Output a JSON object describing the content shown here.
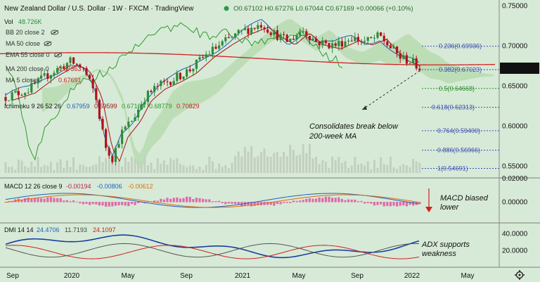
{
  "header": {
    "symbol": "New Zealand Dollar / U.S. Dollar · 1W · FXCM · TradingView",
    "ohlc": "O0.67102 H0.67276 L0.67044 C0.67169 +0.00066 (+0.10%)",
    "vol_label": "Vol",
    "vol_value": "48.726K"
  },
  "indicators": [
    {
      "label": "BB 20 close 2",
      "value": "",
      "color": "#5a86b0"
    },
    {
      "label": "MA 50 close",
      "value": "",
      "color": "#5a86b0"
    },
    {
      "label": "EMA 55 close 0",
      "value": "",
      "color": "#5a86b0"
    },
    {
      "label": "MA 200 close 0",
      "value": "0.67363",
      "color": "#d21f1f"
    },
    {
      "label": "MA 5 close 0",
      "value": "0.67691",
      "color": "#d21f1f"
    }
  ],
  "ichimoku": {
    "label": "Ichimoku 9 26 52 26",
    "values": [
      {
        "v": "0.67959",
        "color": "#1f5fbf"
      },
      {
        "v": "0.69599",
        "color": "#a3121b"
      },
      {
        "v": "0.67169",
        "color": "#2a9a2a"
      },
      {
        "v": "0.68779",
        "color": "#2a9a2a"
      },
      {
        "v": "0.70829",
        "color": "#d21f1f"
      }
    ]
  },
  "price_axis": {
    "ticks": [
      "0.75000",
      "0.70000",
      "0.65000",
      "0.60000",
      "0.55000"
    ],
    "current_price": "0.67169"
  },
  "fib_levels": [
    {
      "label": "0.236(0.69936)",
      "color": "#3c4fb0"
    },
    {
      "label": "0.382(0.67023)",
      "color": "#3c4fb0"
    },
    {
      "label": "0.5(0.64668)",
      "color": "#2a8a2a"
    },
    {
      "label": "0.618(0.62313)",
      "color": "#3c4fb0"
    },
    {
      "label": "0.764(0.59400)",
      "color": "#3c4fb0"
    },
    {
      "label": "0.886(0.56966)",
      "color": "#3c4fb0"
    },
    {
      "label": "1(0.54691)",
      "color": "#3c4fb0"
    }
  ],
  "annotations": {
    "price": [
      "Consolidates break below",
      "200-week MA"
    ],
    "macd": [
      "MACD biased",
      "lower"
    ],
    "adx": [
      "ADX supports",
      "weakness"
    ]
  },
  "macd": {
    "label": "MACD 12 26 close 9",
    "values": [
      {
        "v": "-0.00194",
        "color": "#c2185b"
      },
      {
        "v": "-0.00806",
        "color": "#1f5fbf"
      },
      {
        "v": "-0.00612",
        "color": "#e06a10"
      }
    ],
    "axis_ticks": [
      "0.02000",
      "0.00000"
    ]
  },
  "dmi": {
    "label": "DMI 14 14",
    "values": [
      {
        "v": "24.4706",
        "color": "#1f5fbf"
      },
      {
        "v": "11.7193",
        "color": "#444444"
      },
      {
        "v": "24.1097",
        "color": "#d21f1f"
      }
    ],
    "axis_ticks": [
      "40.0000",
      "20.0000"
    ]
  },
  "time_axis": [
    "Sep",
    "2020",
    "May",
    "Sep",
    "2021",
    "May",
    "Sep",
    "2022",
    "May"
  ],
  "icons": {
    "dot": "green-dot-icon",
    "eye": "eye-icon",
    "settings": "gear-icon"
  },
  "colors": {
    "bg": "#d7ead7",
    "up": "#2e8b3a",
    "down": "#b2121b",
    "cloud": "#b9dbb0",
    "current_badge": "#111111"
  }
}
